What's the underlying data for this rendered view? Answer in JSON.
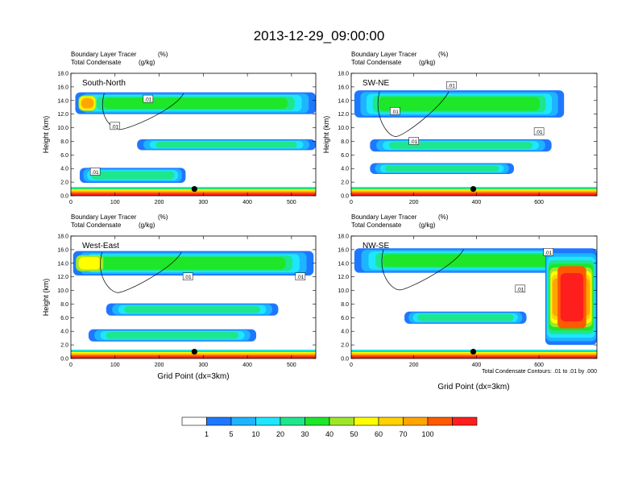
{
  "page": {
    "title": "2013-12-29_09:00:00",
    "x_axis_label": "Grid Point (dx=3km)",
    "contour_note": "Total Condensate Contours: .01 to .01 by .000"
  },
  "colorbar": {
    "colors": [
      "#ffffff",
      "#1e78ff",
      "#1eb4ff",
      "#1ee6ff",
      "#1ee68c",
      "#1ee628",
      "#a0e628",
      "#ffff00",
      "#ffd200",
      "#ffa500",
      "#ff5a00",
      "#ff1e1e"
    ],
    "labels": [
      "1",
      "5",
      "10",
      "20",
      "30",
      "40",
      "50",
      "60",
      "70",
      "100"
    ]
  },
  "chart_data": [
    {
      "type": "heatmap",
      "panel_label": "South-North",
      "field_title": "Boundary Layer Tracer",
      "field_unit": "(%)",
      "contour_title": "Total Condensate",
      "contour_unit": "(g/kg)",
      "ylabel": "Height (km)",
      "xlabel": "",
      "xlim": [
        0,
        555
      ],
      "ylim": [
        0,
        18
      ],
      "xticks": [
        0,
        100,
        200,
        300,
        400,
        500
      ],
      "yticks": [
        "0.0",
        "2.0",
        "4.0",
        "6.0",
        "8.0",
        "10.0",
        "12.0",
        "14.0",
        "16.0",
        "18.0"
      ],
      "contour_labels": [
        {
          "text": ".01",
          "x": 175,
          "y": 14.2
        },
        {
          "text": ".01",
          "x": 100,
          "y": 10.2
        },
        {
          "text": ".01",
          "x": 55,
          "y": 3.5
        }
      ],
      "marker": {
        "x": 280,
        "y": 1.0
      },
      "cloud_layers": [
        {
          "x0": 10,
          "x1": 555,
          "yc": 13.6,
          "h": 3.2,
          "level": 5,
          "peak": 9,
          "peak_x0": 15,
          "peak_x1": 60
        },
        {
          "x0": 150,
          "x1": 555,
          "yc": 7.5,
          "h": 1.6,
          "level": 4
        },
        {
          "x0": 20,
          "x1": 260,
          "yc": 3.0,
          "h": 2.2,
          "level": 4
        }
      ]
    },
    {
      "type": "heatmap",
      "panel_label": "SW-NE",
      "field_title": "Boundary Layer Tracer",
      "field_unit": "(%)",
      "contour_title": "Total Condensate",
      "contour_unit": "(g/kg)",
      "ylabel": "Height (km)",
      "xlabel": "",
      "xlim": [
        0,
        785
      ],
      "ylim": [
        0,
        18
      ],
      "xticks": [
        0,
        200,
        400,
        600
      ],
      "yticks": [
        "0.0",
        "2.0",
        "4.0",
        "6.0",
        "8.0",
        "10.0",
        "12.0",
        "14.0",
        "16.0",
        "18.0"
      ],
      "contour_labels": [
        {
          "text": ".01",
          "x": 320,
          "y": 16.2
        },
        {
          "text": ".01",
          "x": 140,
          "y": 12.4
        },
        {
          "text": ".01",
          "x": 600,
          "y": 9.4
        },
        {
          "text": ".01",
          "x": 200,
          "y": 8.0
        }
      ],
      "marker": {
        "x": 390,
        "y": 1.0
      },
      "cloud_layers": [
        {
          "x0": 10,
          "x1": 680,
          "yc": 13.5,
          "h": 4.0,
          "level": 5
        },
        {
          "x0": 60,
          "x1": 640,
          "yc": 7.4,
          "h": 1.8,
          "level": 4
        },
        {
          "x0": 60,
          "x1": 520,
          "yc": 4.0,
          "h": 1.6,
          "level": 4
        }
      ]
    },
    {
      "type": "heatmap",
      "panel_label": "West-East",
      "field_title": "Boundary Layer Tracer",
      "field_unit": "(%)",
      "contour_title": "Total Condensate",
      "contour_unit": "(g/kg)",
      "ylabel": "Height (km)",
      "xlabel": "",
      "xlim": [
        0,
        555
      ],
      "ylim": [
        0,
        18
      ],
      "xticks": [
        0,
        100,
        200,
        300,
        400,
        500
      ],
      "yticks": [
        "0.0",
        "2.0",
        "4.0",
        "6.0",
        "8.0",
        "10.0",
        "12.0",
        "14.0",
        "16.0",
        "18.0"
      ],
      "contour_labels": [
        {
          "text": ".01",
          "x": 265,
          "y": 12.0
        },
        {
          "text": ".01",
          "x": 520,
          "y": 12.0
        }
      ],
      "marker": {
        "x": 280,
        "y": 1.0
      },
      "cloud_layers": [
        {
          "x0": 5,
          "x1": 550,
          "yc": 14.0,
          "h": 3.6,
          "level": 5,
          "peak": 7,
          "peak_x0": 5,
          "peak_x1": 80
        },
        {
          "x0": 80,
          "x1": 470,
          "yc": 7.2,
          "h": 1.8,
          "level": 4
        },
        {
          "x0": 40,
          "x1": 420,
          "yc": 3.4,
          "h": 1.8,
          "level": 4
        }
      ]
    },
    {
      "type": "heatmap",
      "panel_label": "NW-SE",
      "field_title": "Boundary Layer Tracer",
      "field_unit": "(%)",
      "contour_title": "Total Condensate",
      "contour_unit": "(g/kg)",
      "ylabel": "",
      "xlabel": "",
      "xlim": [
        0,
        785
      ],
      "ylim": [
        0,
        18
      ],
      "xticks": [
        0,
        200,
        400,
        600
      ],
      "yticks": [
        "0.0",
        "2.0",
        "4.0",
        "6.0",
        "8.0",
        "10.0",
        "12.0",
        "14.0",
        "16.0",
        "18.0"
      ],
      "contour_labels": [
        {
          "text": ".01",
          "x": 630,
          "y": 15.6
        },
        {
          "text": ".01",
          "x": 540,
          "y": 10.2
        }
      ],
      "marker": {
        "x": 390,
        "y": 1.0
      },
      "cloud_layers": [
        {
          "x0": 10,
          "x1": 785,
          "yc": 14.4,
          "h": 3.6,
          "level": 5
        },
        {
          "x0": 170,
          "x1": 560,
          "yc": 6.0,
          "h": 1.8,
          "level": 4
        },
        {
          "x0": 620,
          "x1": 785,
          "yc": 9.0,
          "h": 14.0,
          "level": 9,
          "peak": 11,
          "peak_x0": 650,
          "peak_x1": 760
        }
      ]
    }
  ]
}
